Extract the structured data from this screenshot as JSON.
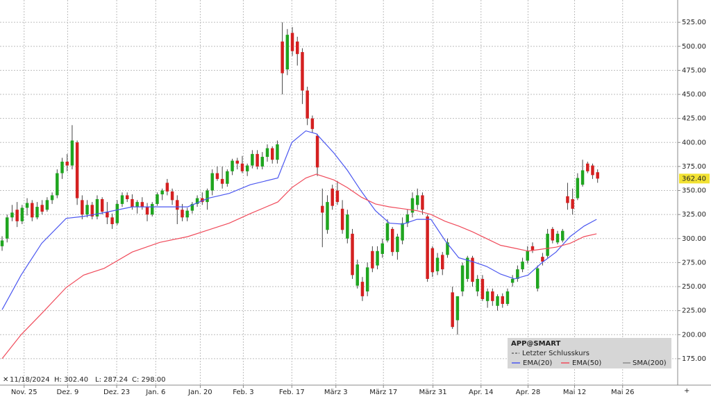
{
  "chart_data": {
    "type": "candlestick",
    "info": {
      "date": "11/18/2024",
      "high": "H: 302.40",
      "low": "L: 287.24",
      "close": "C: 298.00"
    },
    "candles": [
      [
        292,
        302.4,
        287.24,
        298
      ],
      [
        300,
        325,
        296,
        322
      ],
      [
        322,
        335,
        318,
        327
      ],
      [
        330,
        338,
        312,
        318
      ],
      [
        318,
        335,
        315,
        332
      ],
      [
        332,
        342,
        324,
        337
      ],
      [
        337,
        340,
        318,
        322
      ],
      [
        322,
        338,
        320,
        333
      ],
      [
        335,
        340,
        325,
        328
      ],
      [
        330,
        343,
        328,
        340
      ],
      [
        340,
        348,
        336,
        345
      ],
      [
        345,
        372,
        342,
        368
      ],
      [
        368,
        384,
        362,
        380
      ],
      [
        380,
        388,
        370,
        376
      ],
      [
        376,
        418,
        372,
        402
      ],
      [
        400,
        402,
        335,
        342
      ],
      [
        340,
        345,
        320,
        325
      ],
      [
        325,
        340,
        322,
        335
      ],
      [
        335,
        338,
        320,
        323
      ],
      [
        323,
        345,
        320,
        341
      ],
      [
        341,
        343,
        325,
        328
      ],
      [
        328,
        338,
        315,
        322
      ],
      [
        322,
        326,
        310,
        315
      ],
      [
        316,
        340,
        314,
        336
      ],
      [
        336,
        348,
        333,
        345
      ],
      [
        345,
        348,
        338,
        341
      ],
      [
        341,
        346,
        330,
        333
      ],
      [
        333,
        340,
        326,
        338
      ],
      [
        338,
        343,
        330,
        333
      ],
      [
        333,
        337,
        318,
        325
      ],
      [
        325,
        338,
        323,
        336
      ],
      [
        336,
        348,
        334,
        346
      ],
      [
        346,
        352,
        340,
        350
      ],
      [
        358,
        362,
        345,
        349
      ],
      [
        349,
        352,
        335,
        340
      ],
      [
        340,
        345,
        315,
        330
      ],
      [
        330,
        336,
        318,
        322
      ],
      [
        322,
        332,
        318,
        329
      ],
      [
        329,
        338,
        326,
        336
      ],
      [
        336,
        345,
        333,
        342
      ],
      [
        342,
        348,
        335,
        338
      ],
      [
        338,
        352,
        330,
        350
      ],
      [
        350,
        372,
        345,
        368
      ],
      [
        368,
        375,
        360,
        362
      ],
      [
        362,
        375,
        352,
        357
      ],
      [
        357,
        372,
        354,
        370
      ],
      [
        370,
        383,
        366,
        381
      ],
      [
        381,
        384,
        372,
        378
      ],
      [
        378,
        386,
        368,
        370
      ],
      [
        370,
        378,
        365,
        376
      ],
      [
        376,
        392,
        373,
        388
      ],
      [
        388,
        392,
        372,
        375
      ],
      [
        375,
        390,
        372,
        385
      ],
      [
        385,
        398,
        380,
        394
      ],
      [
        394,
        396,
        378,
        382
      ],
      [
        382,
        402,
        378,
        398
      ],
      [
        505,
        525,
        450,
        472
      ],
      [
        476,
        518,
        470,
        512
      ],
      [
        514,
        520,
        490,
        495
      ],
      [
        505,
        510,
        480,
        492
      ],
      [
        494,
        498,
        440,
        454
      ],
      [
        454,
        458,
        418,
        425
      ],
      [
        425,
        428,
        410,
        414
      ],
      [
        407,
        409,
        365,
        374
      ],
      [
        334,
        352,
        291,
        327
      ],
      [
        309,
        345,
        305,
        338
      ],
      [
        352,
        356,
        330,
        334
      ],
      [
        350,
        360,
        335,
        338
      ],
      [
        331,
        340,
        305,
        309
      ],
      [
        300,
        330,
        295,
        325
      ],
      [
        305,
        310,
        258,
        262
      ],
      [
        251,
        278,
        248,
        273
      ],
      [
        255,
        260,
        235,
        240
      ],
      [
        245,
        275,
        240,
        270
      ],
      [
        287,
        292,
        265,
        269
      ],
      [
        272,
        292,
        268,
        287
      ],
      [
        284,
        300,
        280,
        295
      ],
      [
        298,
        320,
        296,
        316
      ],
      [
        310,
        312,
        282,
        286
      ],
      [
        286,
        305,
        278,
        302
      ],
      [
        298,
        322,
        294,
        316
      ],
      [
        316,
        330,
        312,
        325
      ],
      [
        327,
        348,
        322,
        342
      ],
      [
        335,
        352,
        330,
        345
      ],
      [
        345,
        348,
        325,
        330
      ],
      [
        323,
        325,
        255,
        258
      ],
      [
        290,
        292,
        260,
        265
      ],
      [
        266,
        285,
        262,
        280
      ],
      [
        283,
        286,
        262,
        268
      ],
      [
        283,
        300,
        280,
        296
      ],
      [
        244,
        250,
        206,
        208
      ],
      [
        215,
        240,
        200,
        240
      ],
      [
        245,
        275,
        240,
        272
      ],
      [
        258,
        282,
        255,
        280
      ],
      [
        280,
        282,
        250,
        255
      ],
      [
        245,
        262,
        240,
        258
      ],
      [
        258,
        262,
        235,
        237
      ],
      [
        235,
        248,
        228,
        245
      ],
      [
        245,
        248,
        230,
        235
      ],
      [
        230,
        242,
        225,
        240
      ],
      [
        240,
        243,
        228,
        232
      ],
      [
        232,
        248,
        230,
        245
      ],
      [
        254,
        262,
        250,
        258
      ],
      [
        258,
        272,
        255,
        268
      ],
      [
        268,
        280,
        265,
        276
      ],
      [
        277,
        292,
        274,
        287
      ],
      [
        292,
        296,
        285,
        288
      ],
      [
        248,
        272,
        245,
        269
      ],
      [
        281,
        285,
        272,
        276
      ],
      [
        282,
        310,
        280,
        305
      ],
      [
        310,
        312,
        295,
        298
      ],
      [
        296,
        308,
        294,
        305
      ],
      [
        298,
        310,
        296,
        308
      ],
      [
        344,
        358,
        330,
        337
      ],
      [
        341,
        352,
        325,
        331
      ],
      [
        342,
        368,
        340,
        363
      ],
      [
        356,
        382,
        354,
        371
      ],
      [
        378,
        380,
        368,
        370
      ],
      [
        376,
        378,
        362,
        366
      ],
      [
        369,
        372,
        358,
        362.4
      ]
    ],
    "up_color": "#1fa51f",
    "down_color": "#d42020",
    "series": [
      {
        "name": "EMA(20)",
        "color": "#4a56f0",
        "x": [
          0,
          3.8,
          7.9,
          12.8,
          16.3,
          20.4,
          26,
          31.5,
          37.1,
          41.25,
          45.4,
          49.6,
          55.1,
          57.9,
          60.7,
          62.8,
          66.3,
          69,
          71.8,
          74.6,
          77.4,
          80.1,
          82.9,
          85.7,
          88.5,
          91.25,
          94,
          96.8,
          99.6,
          102.4,
          105.1,
          107.9,
          110.7,
          113.5,
          116.3,
          118.8
        ],
        "values": [
          226,
          262,
          295,
          321,
          323,
          327,
          333,
          333,
          333,
          342,
          347,
          356,
          363,
          400,
          412,
          409,
          389,
          371,
          349,
          329,
          316,
          315,
          320,
          320,
          298,
          280,
          276,
          271,
          263,
          258,
          262,
          275,
          286,
          302,
          313,
          320
        ]
      },
      {
        "name": "EMA(50)",
        "color": "#f04a5a",
        "x": [
          0,
          3.8,
          7.9,
          12.8,
          16.3,
          20.4,
          26,
          31.5,
          37.1,
          41.25,
          45.4,
          49.6,
          55.1,
          57.9,
          60.7,
          62.8,
          66.3,
          69,
          71.8,
          74.6,
          77.4,
          80.1,
          82.9,
          85.7,
          88.5,
          91.25,
          94,
          96.8,
          99.6,
          102.4,
          105.1,
          107.9,
          110.7,
          113.5,
          116.3,
          118.8
        ],
        "values": [
          175,
          200,
          222,
          249,
          262,
          269,
          286,
          296,
          302,
          309,
          316,
          326,
          338,
          353,
          363,
          367,
          361,
          353,
          343,
          336,
          333,
          331,
          329,
          325,
          318,
          313,
          307,
          300,
          293,
          290,
          287,
          289,
          291,
          295,
          302,
          305
        ]
      }
    ],
    "xlim": [
      -0.42,
      135
    ],
    "xticks": [
      {
        "value": 4.4,
        "label": "Nov. 25"
      },
      {
        "value": 13.1,
        "label": "Dez. 9"
      },
      {
        "value": 22.9,
        "label": "Dez. 23"
      },
      {
        "value": 30.7,
        "label": "Jan. 6"
      },
      {
        "value": 39.6,
        "label": "Jan. 20"
      },
      {
        "value": 48.2,
        "label": "Feb. 3"
      },
      {
        "value": 57.9,
        "label": "Feb. 17"
      },
      {
        "value": 66.7,
        "label": "März 3"
      },
      {
        "value": 76.2,
        "label": "März 17"
      },
      {
        "value": 86.1,
        "label": "März 31"
      },
      {
        "value": 95.7,
        "label": "Apr. 14"
      },
      {
        "value": 105.1,
        "label": "Apr. 28"
      },
      {
        "value": 114.4,
        "label": "Mai 12"
      },
      {
        "value": 124,
        "label": "Mai 26"
      }
    ],
    "ylim": [
      147.5,
      548.2
    ],
    "yticks": [
      {
        "value": 175,
        "label": "175.00"
      },
      {
        "value": 200,
        "label": "200.00"
      },
      {
        "value": 225,
        "label": "225.00"
      },
      {
        "value": 250,
        "label": "250.00"
      },
      {
        "value": 275,
        "label": "275.00"
      },
      {
        "value": 300,
        "label": "300.00"
      },
      {
        "value": 325,
        "label": "325.00"
      },
      {
        "value": 350,
        "label": "350.00"
      },
      {
        "value": 375,
        "label": "375.00"
      },
      {
        "value": 400,
        "label": "400.00"
      },
      {
        "value": 425,
        "label": "425.00"
      },
      {
        "value": 450,
        "label": "450.00"
      },
      {
        "value": 475,
        "label": "475.00"
      },
      {
        "value": 500,
        "label": "500.00"
      },
      {
        "value": 525,
        "label": "525.00"
      }
    ],
    "grid": true,
    "last_price": {
      "value": 362.4,
      "label": "362.40",
      "color": "#f2e233"
    },
    "legend": {
      "title": "APP@SMART",
      "last_close": "Letzter Schlusskurs",
      "sma": "SMA(200)"
    }
  }
}
